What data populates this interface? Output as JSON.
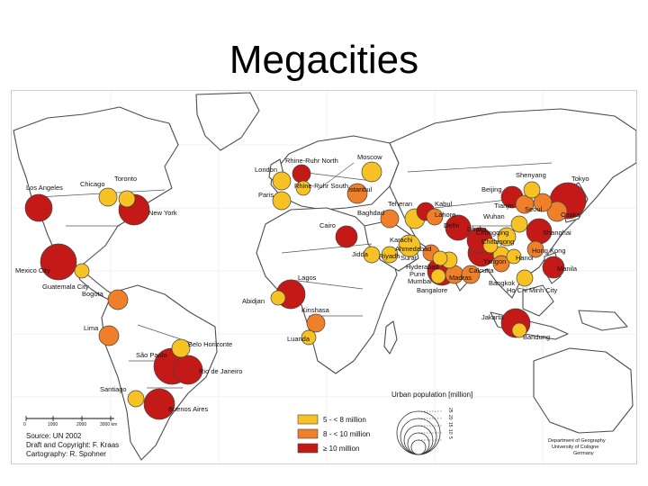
{
  "title": "Megacities",
  "colors": {
    "small": "#f6c224",
    "medium": "#ef7f28",
    "large": "#c41a17",
    "outline": "#444444"
  },
  "legend": {
    "title": "Urban population [million]",
    "classes": [
      {
        "label": "5 - < 8 million",
        "cls": "small"
      },
      {
        "label": "8 - < 10 million",
        "cls": "medium"
      },
      {
        "label": "≥ 10 million",
        "cls": "large"
      }
    ],
    "size_ticks": [
      "5",
      "10",
      "15",
      "20",
      "25"
    ]
  },
  "credits": {
    "source": "Source: UN 2002",
    "draft": "Draft and Copyright: F. Kraas",
    "cartography": "Cartography: R. Spohner",
    "department": "Department of Geography",
    "university": "University of Cologne",
    "country": "Germany"
  },
  "scale_labels": [
    "0",
    "1000",
    "2000",
    "3000 km"
  ],
  "cities": [
    {
      "name": "Los Angeles",
      "cls": "large",
      "r": 15
    },
    {
      "name": "Chicago",
      "cls": "small",
      "r": 10
    },
    {
      "name": "Toronto",
      "cls": "small",
      "r": 9
    },
    {
      "name": "New York",
      "cls": "large",
      "r": 17
    },
    {
      "name": "Mexico City",
      "cls": "large",
      "r": 20
    },
    {
      "name": "Guatemala City",
      "cls": "small",
      "r": 8
    },
    {
      "name": "Bogota",
      "cls": "medium",
      "r": 11
    },
    {
      "name": "Lima",
      "cls": "medium",
      "r": 11
    },
    {
      "name": "Belo Horizonte",
      "cls": "small",
      "r": 10
    },
    {
      "name": "São Paulo",
      "cls": "large",
      "r": 20
    },
    {
      "name": "Rio de Janeiro",
      "cls": "large",
      "r": 16
    },
    {
      "name": "Santiago",
      "cls": "small",
      "r": 9
    },
    {
      "name": "Buenos Aires",
      "cls": "large",
      "r": 17
    },
    {
      "name": "London",
      "cls": "small",
      "r": 10
    },
    {
      "name": "Paris",
      "cls": "small",
      "r": 10
    },
    {
      "name": "Rhine-Ruhr North",
      "cls": "large",
      "r": 10
    },
    {
      "name": "Rhine-Ruhr South",
      "cls": "small",
      "r": 8
    },
    {
      "name": "Moscow",
      "cls": "small",
      "r": 11
    },
    {
      "name": "Istanbul",
      "cls": "medium",
      "r": 11
    },
    {
      "name": "Cairo",
      "cls": "large",
      "r": 12
    },
    {
      "name": "Baghdad",
      "cls": "medium",
      "r": 10
    },
    {
      "name": "Teheran",
      "cls": "small",
      "r": 11
    },
    {
      "name": "Kabul",
      "cls": "large",
      "r": 10
    },
    {
      "name": "Lahore",
      "cls": "medium",
      "r": 9
    },
    {
      "name": "Karachi",
      "cls": "small",
      "r": 12
    },
    {
      "name": "Delhi",
      "cls": "large",
      "r": 14
    },
    {
      "name": "Ahmedabad",
      "cls": "medium",
      "r": 9
    },
    {
      "name": "Surat",
      "cls": "small",
      "r": 8
    },
    {
      "name": "Hyderabad",
      "cls": "small",
      "r": 9
    },
    {
      "name": "Mumbai",
      "cls": "large",
      "r": 16
    },
    {
      "name": "Pune",
      "cls": "small",
      "r": 8
    },
    {
      "name": "Bangalore",
      "cls": "medium",
      "r": 10
    },
    {
      "name": "Madras",
      "cls": "medium",
      "r": 10
    },
    {
      "name": "Calcutta",
      "cls": "large",
      "r": 15
    },
    {
      "name": "Dhaka",
      "cls": "large",
      "r": 14
    },
    {
      "name": "Chittagong",
      "cls": "small",
      "r": 8
    },
    {
      "name": "Yangon",
      "cls": "small",
      "r": 9
    },
    {
      "name": "Bangkok",
      "cls": "medium",
      "r": 9
    },
    {
      "name": "Ho Chi Minh City",
      "cls": "small",
      "r": 9
    },
    {
      "name": "Hanoi",
      "cls": "small",
      "r": 8
    },
    {
      "name": "Hong Kong",
      "cls": "medium",
      "r": 9
    },
    {
      "name": "Manila",
      "cls": "large",
      "r": 12
    },
    {
      "name": "Jakarta",
      "cls": "large",
      "r": 16
    },
    {
      "name": "Bandung",
      "cls": "small",
      "r": 8
    },
    {
      "name": "Wuhan",
      "cls": "small",
      "r": 9
    },
    {
      "name": "Chongqing",
      "cls": "small",
      "r": 10
    },
    {
      "name": "Shanghai",
      "cls": "large",
      "r": 14
    },
    {
      "name": "Beijing",
      "cls": "large",
      "r": 12
    },
    {
      "name": "Tianjin",
      "cls": "medium",
      "r": 10
    },
    {
      "name": "Shenyang",
      "cls": "small",
      "r": 9
    },
    {
      "name": "Seoul",
      "cls": "medium",
      "r": 10
    },
    {
      "name": "Tokyo",
      "cls": "large",
      "r": 20
    },
    {
      "name": "Osaka",
      "cls": "medium",
      "r": 11
    },
    {
      "name": "Lagos",
      "cls": "large",
      "r": 16
    },
    {
      "name": "Abidjan",
      "cls": "small",
      "r": 8
    },
    {
      "name": "Kinshasa",
      "cls": "medium",
      "r": 10
    },
    {
      "name": "Luanda",
      "cls": "small",
      "r": 8
    },
    {
      "name": "Jidda",
      "cls": "small",
      "r": 9
    },
    {
      "name": "Riyadh",
      "cls": "small",
      "r": 9
    }
  ]
}
